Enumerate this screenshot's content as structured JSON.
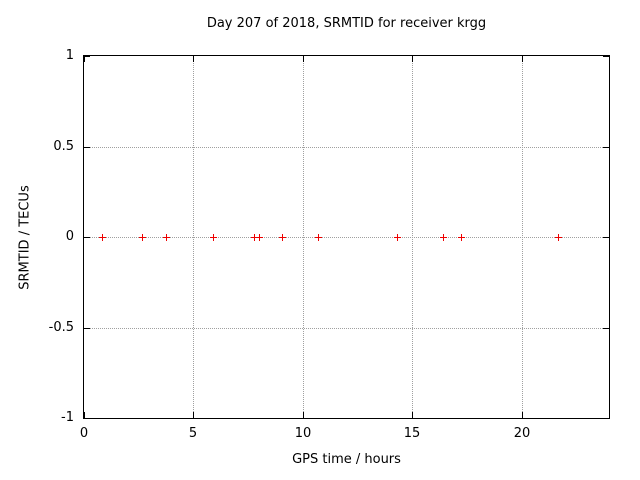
{
  "title": "Day 207 of 2018, SRMTID for receiver krgg",
  "colors": {
    "background": "#ffffff",
    "axis": "#000000",
    "grid": "#a0a0a0",
    "marker": "#ee0000"
  },
  "chart_data": {
    "type": "scatter",
    "title": "Day 207 of 2018, SRMTID for receiver krgg",
    "xlabel": "GPS time / hours",
    "ylabel": "SRMTID / TECUs",
    "xlim": [
      0,
      24
    ],
    "ylim": [
      -1,
      1
    ],
    "xticks": [
      0,
      5,
      10,
      15,
      20
    ],
    "yticks": [
      -1,
      -0.5,
      0,
      0.5,
      1
    ],
    "grid": true,
    "legend_position": "none",
    "marker_style": "plus",
    "series": [
      {
        "name": "SRMTID",
        "color": "#ee0000",
        "x": [
          0.8,
          2.65,
          3.75,
          5.9,
          7.75,
          8.0,
          9.05,
          10.7,
          14.3,
          16.4,
          17.25,
          21.65
        ],
        "y": [
          0,
          0,
          0,
          0,
          0,
          0,
          0,
          0,
          0,
          0,
          0,
          0
        ]
      }
    ]
  }
}
